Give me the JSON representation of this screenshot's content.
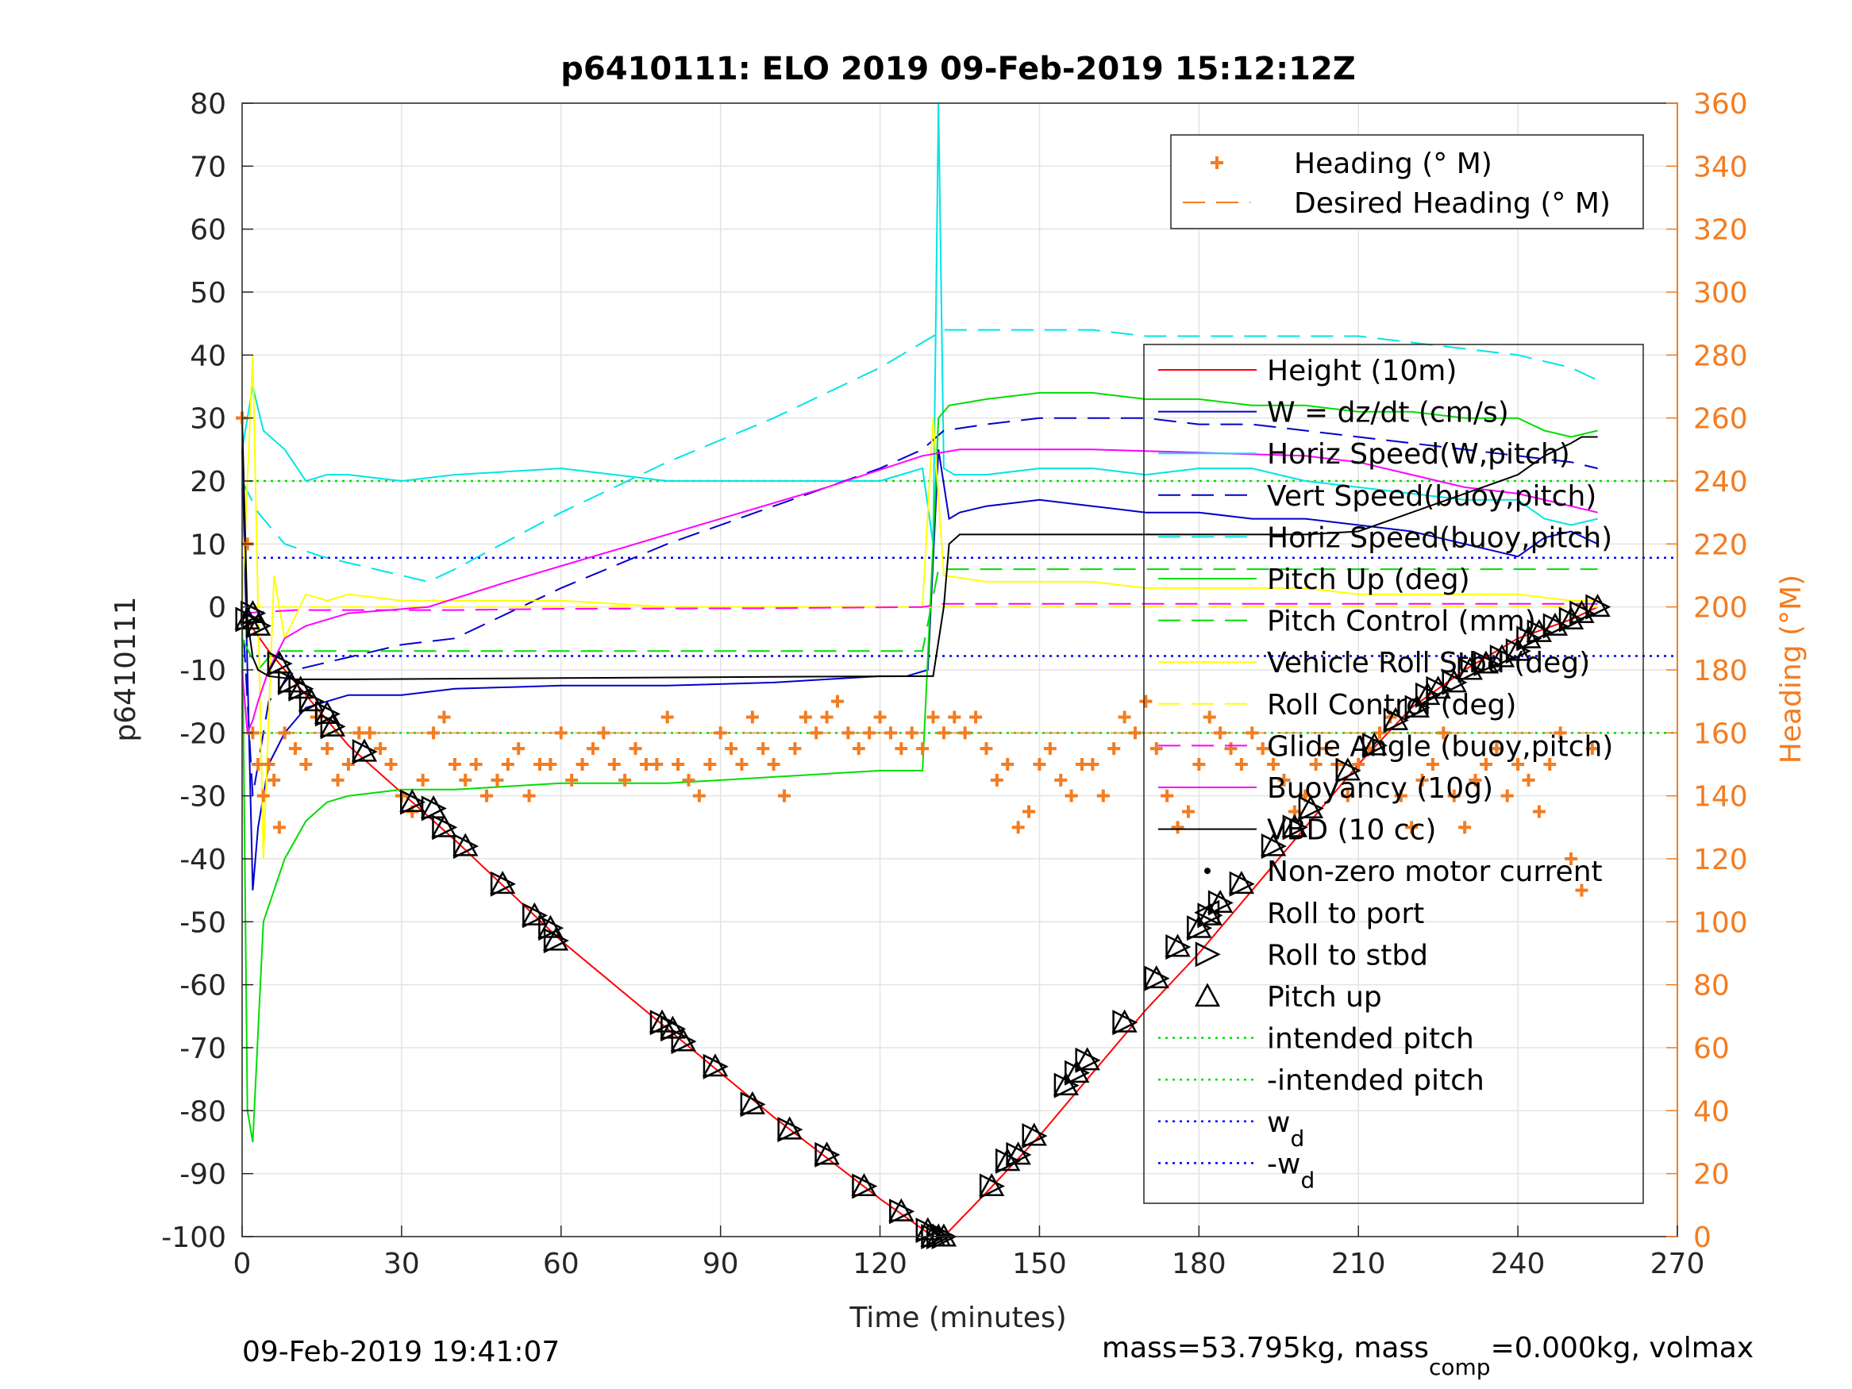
{
  "chart_data": {
    "type": "line",
    "title": "p6410111: ELO 2019 09-Feb-2019 15:12:12Z",
    "xlabel": "Time (minutes)",
    "ylabel": "p6410111",
    "y2label": "Heading (°M)",
    "xlim": [
      0,
      270
    ],
    "ylim": [
      -100,
      80
    ],
    "y2lim": [
      0,
      360
    ],
    "xticks": [
      "0",
      "30",
      "60",
      "90",
      "120",
      "150",
      "180",
      "210",
      "240",
      "270"
    ],
    "yticks": [
      "80",
      "70",
      "60",
      "50",
      "40",
      "30",
      "20",
      "10",
      "0",
      "-10",
      "-20",
      "-30",
      "-40",
      "-50",
      "-60",
      "-70",
      "-80",
      "-90",
      "-100"
    ],
    "y2ticks": [
      "360",
      "340",
      "320",
      "300",
      "280",
      "260",
      "240",
      "220",
      "200",
      "180",
      "160",
      "140",
      "120",
      "100",
      "80",
      "60",
      "40",
      "20",
      "0"
    ],
    "grid": true,
    "footer_left": "09-Feb-2019 19:41:07",
    "footer_right": "mass=53.795kg, mass",
    "footer_right_sub": "comp",
    "footer_right_tail": "=0.000kg, volmax",
    "legend_top": [
      {
        "name": "Heading (° M)",
        "color": "#f47c20",
        "style": "plus"
      },
      {
        "name": "Desired Heading (° M)",
        "color": "#f47c20",
        "style": "dash"
      }
    ],
    "legend_main": [
      {
        "name": "Height (10m)",
        "color": "#ff0000",
        "style": "solid"
      },
      {
        "name": "W = dz/dt (cm/s)",
        "color": "#0000cc",
        "style": "solid"
      },
      {
        "name": "Horiz Speed(W,pitch)",
        "color": "#00e5e5",
        "style": "solid"
      },
      {
        "name": "Vert Speed(buoy,pitch)",
        "color": "#0000cc",
        "style": "dash"
      },
      {
        "name": "Horiz Speed(buoy,pitch)",
        "color": "#00e5e5",
        "style": "dash"
      },
      {
        "name": "Pitch Up (deg)",
        "color": "#00dd00",
        "style": "solid"
      },
      {
        "name": "Pitch Control (mm)",
        "color": "#00dd00",
        "style": "dash"
      },
      {
        "name": "Vehicle Roll Stbd (deg)",
        "color": "#ffff00",
        "style": "solid"
      },
      {
        "name": "Roll Control (deg)",
        "color": "#ffff00",
        "style": "dash"
      },
      {
        "name": "Glide Angle (buoy,pitch)",
        "color": "#ff00ff",
        "style": "dash"
      },
      {
        "name": "Buoyancy (10g)",
        "color": "#ff00ff",
        "style": "solid"
      },
      {
        "name": "VBD (10 cc)",
        "color": "#000000",
        "style": "solid"
      },
      {
        "name": "Non-zero motor current",
        "color": "#000000",
        "style": "dot"
      },
      {
        "name": "Roll to port",
        "color": "#000000",
        "style": "tri-left"
      },
      {
        "name": "Roll to stbd",
        "color": "#000000",
        "style": "tri-right"
      },
      {
        "name": "Pitch up",
        "color": "#000000",
        "style": "tri-up"
      },
      {
        "name": "intended pitch",
        "color": "#00dd00",
        "style": "dotted"
      },
      {
        "name": "-intended pitch",
        "color": "#00dd00",
        "style": "dotted"
      },
      {
        "name": "w",
        "sub": "d",
        "color": "#0000ff",
        "style": "dotted"
      },
      {
        "name": "-w",
        "sub": "d",
        "color": "#0000ff",
        "style": "dotted"
      }
    ],
    "reference_lines": [
      {
        "name": "intended pitch",
        "y": 20,
        "color": "#00dd00"
      },
      {
        "name": "-intended pitch",
        "y": -20,
        "color": "#00dd00"
      },
      {
        "name": "w_d",
        "y": 7.8,
        "color": "#0000ff"
      },
      {
        "name": "-w_d",
        "y": -7.8,
        "color": "#0000ff"
      }
    ],
    "series": [
      {
        "name": "Height (10m)",
        "color": "#ff0000",
        "x": [
          0,
          5,
          10,
          20,
          40,
          60,
          80,
          100,
          120,
          130,
          132,
          140,
          150,
          160,
          170,
          180,
          190,
          200,
          210,
          220,
          230,
          240,
          250,
          255
        ],
        "y": [
          -1,
          -7,
          -12,
          -22,
          -37,
          -53,
          -67,
          -81,
          -94,
          -100,
          -100,
          -93,
          -84,
          -74,
          -64,
          -55,
          -45,
          -35,
          -25,
          -16,
          -10,
          -5,
          -2,
          0
        ]
      },
      {
        "name": "W = dz/dt (cm/s)",
        "color": "#0000cc",
        "x": [
          0,
          1,
          2,
          3,
          5,
          8,
          12,
          20,
          30,
          40,
          60,
          80,
          100,
          120,
          125,
          129,
          131,
          133,
          135,
          140,
          150,
          160,
          170,
          180,
          190,
          200,
          210,
          220,
          230,
          240,
          245,
          250,
          255
        ],
        "y": [
          25,
          -10,
          -45,
          -35,
          -25,
          -20,
          -16,
          -14,
          -14,
          -13,
          -12.5,
          -12.5,
          -12,
          -11,
          -11,
          -10,
          25,
          14,
          15,
          16,
          17,
          16,
          15,
          15,
          14,
          14,
          13,
          12,
          10,
          8,
          11,
          12,
          10
        ]
      },
      {
        "name": "Horiz Speed(W,pitch)",
        "color": "#00e5e5",
        "x": [
          0,
          2,
          4,
          8,
          12,
          16,
          20,
          30,
          40,
          60,
          80,
          100,
          120,
          128,
          130,
          131,
          132,
          134,
          140,
          150,
          160,
          170,
          180,
          190,
          200,
          210,
          220,
          230,
          240,
          245,
          250,
          255
        ],
        "y": [
          25,
          35,
          28,
          25,
          20,
          21,
          21,
          20,
          21,
          22,
          20,
          20,
          20,
          22,
          10,
          80,
          22,
          21,
          21,
          22,
          22,
          21,
          22,
          22,
          20,
          19,
          18,
          17,
          17,
          14,
          13,
          14
        ]
      },
      {
        "name": "Vert Speed(buoy,pitch)",
        "color": "#0000cc",
        "dashed": true,
        "x": [
          0,
          2,
          5,
          10,
          20,
          30,
          40,
          60,
          80,
          100,
          120,
          128,
          132,
          140,
          150,
          160,
          170,
          180,
          190,
          200,
          210,
          220,
          230,
          240,
          250,
          255
        ],
        "y": [
          0,
          -30,
          -15,
          -10,
          -8,
          -6,
          -5,
          3,
          10,
          16,
          22,
          25,
          28,
          29,
          30,
          30,
          30,
          29,
          29,
          28,
          27,
          26,
          25,
          24,
          23,
          22
        ]
      },
      {
        "name": "Horiz Speed(buoy,pitch)",
        "color": "#00e5e5",
        "dashed": true,
        "x": [
          0,
          3,
          8,
          15,
          20,
          30,
          35,
          40,
          60,
          80,
          100,
          120,
          128,
          132,
          140,
          150,
          160,
          170,
          180,
          190,
          200,
          210,
          220,
          230,
          240,
          250,
          255
        ],
        "y": [
          20,
          15,
          10,
          8,
          7,
          5,
          4,
          6,
          15,
          23,
          30,
          38,
          42,
          44,
          44,
          44,
          44,
          43,
          43,
          43,
          43,
          43,
          42,
          41,
          40,
          38,
          36
        ]
      },
      {
        "name": "Pitch Up (deg)",
        "color": "#00dd00",
        "x": [
          0,
          1,
          2,
          4,
          8,
          12,
          16,
          20,
          30,
          40,
          60,
          80,
          100,
          120,
          128,
          130,
          131,
          133,
          140,
          150,
          160,
          170,
          180,
          190,
          200,
          210,
          220,
          230,
          240,
          245,
          250,
          255
        ],
        "y": [
          0,
          -80,
          -85,
          -50,
          -40,
          -34,
          -31,
          -30,
          -29,
          -29,
          -28,
          -28,
          -27,
          -26,
          -26,
          10,
          30,
          32,
          33,
          34,
          34,
          33,
          33,
          32,
          32,
          31,
          31,
          30,
          30,
          28,
          27,
          28
        ]
      },
      {
        "name": "Pitch Control (mm)",
        "color": "#00dd00",
        "dashed": true,
        "x": [
          0,
          3,
          6,
          10,
          20,
          40,
          60,
          80,
          100,
          120,
          128,
          131,
          140,
          160,
          180,
          200,
          220,
          240,
          255
        ],
        "y": [
          -5,
          -10,
          -7,
          -7,
          -7,
          -7,
          -7,
          -7,
          -7,
          -7,
          -7,
          6,
          6,
          6,
          6,
          6,
          6,
          6,
          6
        ]
      },
      {
        "name": "Vehicle Roll Stbd (deg)",
        "color": "#ffff00",
        "x": [
          0,
          2,
          4,
          6,
          8,
          12,
          16,
          20,
          30,
          40,
          60,
          80,
          100,
          120,
          128,
          130,
          132,
          140,
          150,
          160,
          170,
          180,
          190,
          200,
          210,
          220,
          230,
          240,
          250,
          255
        ],
        "y": [
          0,
          40,
          -40,
          5,
          -5,
          2,
          1,
          2,
          1,
          1,
          1,
          0,
          0,
          0,
          0,
          30,
          5,
          4,
          4,
          4,
          3,
          3,
          3,
          3,
          2,
          2,
          2,
          2,
          1,
          1
        ]
      },
      {
        "name": "Roll Control (deg)",
        "color": "#ffff00",
        "dashed": true,
        "x": [
          0,
          10,
          50,
          100,
          128,
          132,
          180,
          230,
          255
        ],
        "y": [
          0,
          0,
          0,
          0,
          0,
          0,
          0,
          0,
          0
        ]
      },
      {
        "name": "Glide Angle (buoy,pitch)",
        "color": "#ff00ff",
        "dashed": true,
        "x": [
          0,
          10,
          40,
          60,
          100,
          128,
          132,
          160,
          200,
          230,
          255
        ],
        "y": [
          -1,
          -0.5,
          -0.5,
          -0.3,
          -0.2,
          0,
          0.5,
          0.5,
          0.5,
          0.5,
          0.5
        ]
      },
      {
        "name": "Buoyancy (10g)",
        "color": "#ff00ff",
        "x": [
          0,
          1,
          2,
          3,
          5,
          8,
          12,
          20,
          35,
          50,
          70,
          90,
          110,
          128,
          135,
          160,
          180,
          200,
          210,
          220,
          230,
          240,
          250,
          255
        ],
        "y": [
          -10,
          -20,
          -18,
          -15,
          -10,
          -5,
          -3,
          -1,
          0,
          4,
          9,
          14,
          19,
          24,
          25,
          25,
          24.5,
          24,
          23,
          21,
          19,
          18,
          16,
          15
        ]
      },
      {
        "name": "VBD (10 cc)",
        "color": "#000000",
        "x": [
          0,
          1,
          2,
          3,
          5,
          10,
          20,
          60,
          100,
          129,
          130,
          132,
          133,
          135,
          160,
          200,
          210,
          220,
          230,
          240,
          245,
          250,
          252,
          255
        ],
        "y": [
          30,
          -2,
          -8,
          -10,
          -11,
          -11.5,
          -11.5,
          -11.3,
          -11.1,
          -11,
          -11,
          0,
          10,
          11.5,
          11.5,
          11.5,
          12,
          15,
          18,
          21,
          24,
          26,
          27,
          27
        ]
      }
    ],
    "heading_points": {
      "x": [
        0,
        1,
        2,
        3,
        4,
        5,
        6,
        7,
        8,
        10,
        12,
        14,
        16,
        18,
        20,
        22,
        24,
        26,
        28,
        30,
        32,
        34,
        36,
        38,
        40,
        42,
        44,
        46,
        48,
        50,
        52,
        54,
        56,
        58,
        60,
        62,
        64,
        66,
        68,
        70,
        72,
        74,
        76,
        78,
        80,
        82,
        84,
        86,
        88,
        90,
        92,
        94,
        96,
        98,
        100,
        102,
        104,
        106,
        108,
        110,
        112,
        114,
        116,
        118,
        120,
        122,
        124,
        126,
        128,
        130,
        132,
        134,
        136,
        138,
        140,
        142,
        144,
        146,
        148,
        150,
        152,
        154,
        156,
        158,
        160,
        162,
        164,
        166,
        168,
        170,
        172,
        174,
        176,
        178,
        180,
        182,
        184,
        186,
        188,
        190,
        192,
        194,
        196,
        198,
        200,
        202,
        204,
        206,
        208,
        210,
        212,
        214,
        216,
        218,
        220,
        222,
        224,
        226,
        228,
        230,
        232,
        234,
        236,
        238,
        240,
        242,
        244,
        246,
        248,
        250,
        252,
        254
      ],
      "y": [
        260,
        220,
        160,
        150,
        140,
        150,
        145,
        130,
        160,
        155,
        150,
        165,
        155,
        145,
        150,
        160,
        160,
        155,
        150,
        140,
        135,
        145,
        160,
        165,
        150,
        145,
        150,
        140,
        145,
        150,
        155,
        140,
        150,
        150,
        160,
        145,
        150,
        155,
        160,
        150,
        145,
        155,
        150,
        150,
        165,
        150,
        145,
        140,
        150,
        160,
        155,
        150,
        165,
        155,
        150,
        140,
        155,
        165,
        160,
        165,
        170,
        160,
        155,
        160,
        165,
        160,
        155,
        160,
        155,
        165,
        160,
        165,
        160,
        165,
        155,
        145,
        150,
        130,
        135,
        150,
        155,
        145,
        140,
        150,
        150,
        140,
        155,
        165,
        160,
        170,
        155,
        140,
        130,
        135,
        150,
        165,
        160,
        155,
        150,
        160,
        155,
        150,
        145,
        135,
        140,
        150,
        155,
        150,
        140,
        150,
        155,
        160,
        165,
        140,
        130,
        145,
        150,
        160,
        140,
        130,
        145,
        150,
        155,
        140,
        150,
        145,
        135,
        150,
        160,
        120,
        110,
        155
      ]
    },
    "desired_heading": [
      {
        "x": [
          0,
          128
        ],
        "y": [
          160,
          160
        ]
      },
      {
        "x": [
          132,
          255
        ],
        "y": [
          160,
          160
        ]
      }
    ],
    "markers": {
      "x": [
        1,
        2,
        3,
        7,
        9,
        11,
        13,
        16,
        17,
        23,
        32,
        36,
        38,
        42,
        49,
        55,
        58,
        59,
        79,
        81,
        83,
        89,
        96,
        103,
        110,
        117,
        124,
        129,
        130,
        131,
        132,
        141,
        144,
        146,
        149,
        155,
        157,
        159,
        166,
        172,
        176,
        180,
        182,
        184,
        188,
        194,
        198,
        201,
        208,
        213,
        217,
        221,
        223,
        225,
        228,
        231,
        234,
        237,
        240,
        242,
        244,
        247,
        250,
        252,
        255
      ],
      "y": [
        -2,
        -1,
        -3,
        -9,
        -12,
        -13,
        -15,
        -17,
        -19,
        -23,
        -31,
        -32,
        -35,
        -38,
        -44,
        -49,
        -51,
        -53,
        -66,
        -67,
        -69,
        -73,
        -79,
        -83,
        -87,
        -92,
        -96,
        -99,
        -100,
        -100,
        -100,
        -92,
        -88,
        -87,
        -84,
        -76,
        -74,
        -72,
        -66,
        -59,
        -54,
        -51,
        -49,
        -47,
        -44,
        -38,
        -35,
        -32,
        -26,
        -22,
        -18,
        -16,
        -14,
        -13,
        -12,
        -10,
        -9,
        -8,
        -7,
        -5,
        -4,
        -3,
        -2,
        -1,
        0
      ]
    }
  }
}
